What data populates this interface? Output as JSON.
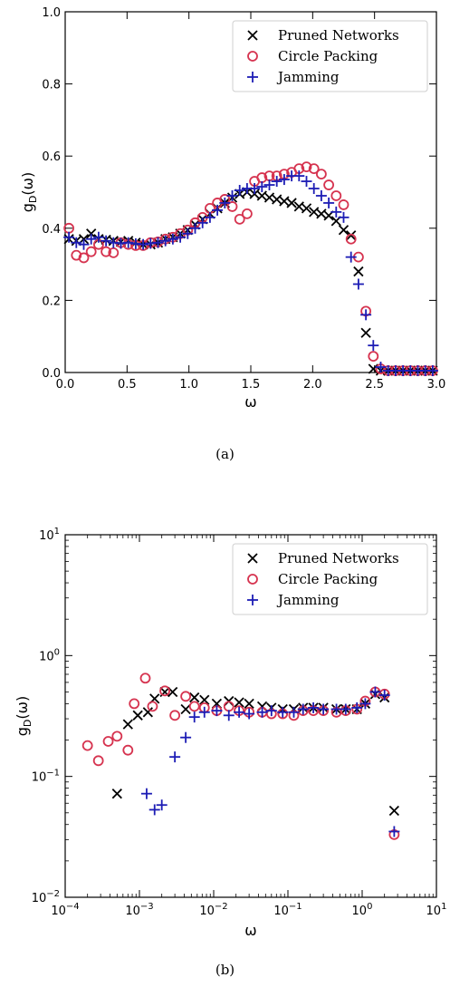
{
  "chart_data": [
    {
      "type": "scatter",
      "caption": "(a)",
      "xlabel": "ω",
      "ylabel": "gD(ω)",
      "xscale": "linear",
      "yscale": "linear",
      "xlim": [
        0.0,
        3.0
      ],
      "ylim": [
        0.0,
        1.0
      ],
      "xticks": [
        0.0,
        0.5,
        1.0,
        1.5,
        2.0,
        2.5,
        3.0
      ],
      "xtick_labels": [
        "0.0",
        "0.5",
        "1.0",
        "1.5",
        "2.0",
        "2.5",
        "3.0"
      ],
      "yticks": [
        0.0,
        0.2,
        0.4,
        0.6,
        0.8,
        1.0
      ],
      "ytick_labels": [
        "0.0",
        "0.2",
        "0.4",
        "0.6",
        "0.8",
        "1.0"
      ],
      "legend_position": "top-right",
      "grid": false,
      "series": [
        {
          "name": "Pruned Networks",
          "marker": "x",
          "color": "#000000",
          "points": [
            [
              0.03,
              0.37
            ],
            [
              0.09,
              0.365
            ],
            [
              0.15,
              0.37
            ],
            [
              0.21,
              0.385
            ],
            [
              0.27,
              0.37
            ],
            [
              0.33,
              0.368
            ],
            [
              0.39,
              0.365
            ],
            [
              0.45,
              0.362
            ],
            [
              0.51,
              0.365
            ],
            [
              0.57,
              0.36
            ],
            [
              0.63,
              0.355
            ],
            [
              0.69,
              0.355
            ],
            [
              0.75,
              0.36
            ],
            [
              0.81,
              0.37
            ],
            [
              0.87,
              0.375
            ],
            [
              0.93,
              0.385
            ],
            [
              0.99,
              0.395
            ],
            [
              1.05,
              0.41
            ],
            [
              1.11,
              0.425
            ],
            [
              1.17,
              0.44
            ],
            [
              1.23,
              0.455
            ],
            [
              1.29,
              0.47
            ],
            [
              1.35,
              0.485
            ],
            [
              1.41,
              0.495
            ],
            [
              1.47,
              0.5
            ],
            [
              1.53,
              0.495
            ],
            [
              1.59,
              0.49
            ],
            [
              1.65,
              0.485
            ],
            [
              1.71,
              0.48
            ],
            [
              1.77,
              0.475
            ],
            [
              1.83,
              0.47
            ],
            [
              1.89,
              0.46
            ],
            [
              1.95,
              0.455
            ],
            [
              2.01,
              0.445
            ],
            [
              2.07,
              0.44
            ],
            [
              2.13,
              0.435
            ],
            [
              2.19,
              0.42
            ],
            [
              2.25,
              0.395
            ],
            [
              2.31,
              0.38
            ],
            [
              2.37,
              0.28
            ],
            [
              2.43,
              0.11
            ],
            [
              2.49,
              0.01
            ],
            [
              2.55,
              0.005
            ],
            [
              2.61,
              0.005
            ],
            [
              2.67,
              0.005
            ],
            [
              2.73,
              0.005
            ],
            [
              2.79,
              0.005
            ],
            [
              2.85,
              0.005
            ],
            [
              2.91,
              0.005
            ],
            [
              2.97,
              0.005
            ]
          ]
        },
        {
          "name": "Circle Packing",
          "marker": "o",
          "color": "#d6334f",
          "points": [
            [
              0.03,
              0.4
            ],
            [
              0.09,
              0.325
            ],
            [
              0.15,
              0.318
            ],
            [
              0.21,
              0.335
            ],
            [
              0.27,
              0.355
            ],
            [
              0.33,
              0.335
            ],
            [
              0.39,
              0.332
            ],
            [
              0.45,
              0.36
            ],
            [
              0.51,
              0.355
            ],
            [
              0.57,
              0.352
            ],
            [
              0.63,
              0.352
            ],
            [
              0.69,
              0.36
            ],
            [
              0.75,
              0.362
            ],
            [
              0.81,
              0.37
            ],
            [
              0.87,
              0.375
            ],
            [
              0.93,
              0.385
            ],
            [
              0.99,
              0.395
            ],
            [
              1.05,
              0.415
            ],
            [
              1.11,
              0.43
            ],
            [
              1.17,
              0.455
            ],
            [
              1.23,
              0.47
            ],
            [
              1.29,
              0.48
            ],
            [
              1.35,
              0.46
            ],
            [
              1.41,
              0.425
            ],
            [
              1.47,
              0.44
            ],
            [
              1.53,
              0.53
            ],
            [
              1.59,
              0.54
            ],
            [
              1.65,
              0.545
            ],
            [
              1.71,
              0.545
            ],
            [
              1.77,
              0.55
            ],
            [
              1.83,
              0.555
            ],
            [
              1.89,
              0.565
            ],
            [
              1.95,
              0.57
            ],
            [
              2.01,
              0.565
            ],
            [
              2.07,
              0.55
            ],
            [
              2.13,
              0.52
            ],
            [
              2.19,
              0.49
            ],
            [
              2.25,
              0.465
            ],
            [
              2.31,
              0.37
            ],
            [
              2.37,
              0.32
            ],
            [
              2.43,
              0.17
            ],
            [
              2.49,
              0.045
            ],
            [
              2.55,
              0.01
            ],
            [
              2.61,
              0.005
            ],
            [
              2.67,
              0.005
            ],
            [
              2.73,
              0.005
            ],
            [
              2.79,
              0.005
            ],
            [
              2.85,
              0.005
            ],
            [
              2.91,
              0.005
            ],
            [
              2.97,
              0.005
            ]
          ]
        },
        {
          "name": "Jamming",
          "marker": "+",
          "color": "#1d1db5",
          "points": [
            [
              0.03,
              0.375
            ],
            [
              0.09,
              0.36
            ],
            [
              0.15,
              0.355
            ],
            [
              0.21,
              0.37
            ],
            [
              0.27,
              0.375
            ],
            [
              0.33,
              0.365
            ],
            [
              0.39,
              0.36
            ],
            [
              0.45,
              0.358
            ],
            [
              0.51,
              0.36
            ],
            [
              0.57,
              0.357
            ],
            [
              0.63,
              0.355
            ],
            [
              0.69,
              0.358
            ],
            [
              0.75,
              0.36
            ],
            [
              0.81,
              0.365
            ],
            [
              0.87,
              0.37
            ],
            [
              0.93,
              0.375
            ],
            [
              0.99,
              0.385
            ],
            [
              1.05,
              0.4
            ],
            [
              1.11,
              0.415
            ],
            [
              1.17,
              0.43
            ],
            [
              1.23,
              0.45
            ],
            [
              1.29,
              0.47
            ],
            [
              1.35,
              0.49
            ],
            [
              1.41,
              0.505
            ],
            [
              1.47,
              0.51
            ],
            [
              1.53,
              0.51
            ],
            [
              1.59,
              0.515
            ],
            [
              1.65,
              0.52
            ],
            [
              1.71,
              0.53
            ],
            [
              1.77,
              0.535
            ],
            [
              1.83,
              0.545
            ],
            [
              1.89,
              0.545
            ],
            [
              1.95,
              0.53
            ],
            [
              2.01,
              0.51
            ],
            [
              2.07,
              0.49
            ],
            [
              2.13,
              0.47
            ],
            [
              2.19,
              0.445
            ],
            [
              2.25,
              0.43
            ],
            [
              2.31,
              0.32
            ],
            [
              2.37,
              0.245
            ],
            [
              2.43,
              0.16
            ],
            [
              2.49,
              0.075
            ],
            [
              2.55,
              0.015
            ],
            [
              2.61,
              0.005
            ],
            [
              2.67,
              0.005
            ],
            [
              2.73,
              0.005
            ],
            [
              2.79,
              0.005
            ],
            [
              2.85,
              0.005
            ],
            [
              2.91,
              0.005
            ],
            [
              2.97,
              0.005
            ]
          ]
        }
      ]
    },
    {
      "type": "scatter",
      "caption": "(b)",
      "xlabel": "ω",
      "ylabel": "gD(ω)",
      "xscale": "log",
      "yscale": "log",
      "xlim": [
        0.0001,
        10
      ],
      "ylim": [
        0.01,
        10
      ],
      "xticks": [
        0.0001,
        0.001,
        0.01,
        0.1,
        1,
        10
      ],
      "xtick_labels": [
        [
          "10",
          "−4"
        ],
        [
          "10",
          "−3"
        ],
        [
          "10",
          "−2"
        ],
        [
          "10",
          "−1"
        ],
        [
          "10",
          "0"
        ],
        [
          "10",
          "1"
        ]
      ],
      "yticks": [
        0.01,
        0.1,
        1,
        10
      ],
      "ytick_labels": [
        [
          "10",
          "−2"
        ],
        [
          "10",
          "−1"
        ],
        [
          "10",
          "0"
        ],
        [
          "10",
          "1"
        ]
      ],
      "legend_position": "top-right",
      "grid": false,
      "series": [
        {
          "name": "Pruned Networks",
          "marker": "x",
          "color": "#000000",
          "points": [
            [
              0.0005,
              0.072
            ],
            [
              0.0007,
              0.27
            ],
            [
              0.00095,
              0.32
            ],
            [
              0.0013,
              0.34
            ],
            [
              0.0016,
              0.44
            ],
            [
              0.0022,
              0.5
            ],
            [
              0.0028,
              0.5
            ],
            [
              0.0042,
              0.36
            ],
            [
              0.0055,
              0.45
            ],
            [
              0.0075,
              0.43
            ],
            [
              0.011,
              0.4
            ],
            [
              0.016,
              0.42
            ],
            [
              0.022,
              0.41
            ],
            [
              0.03,
              0.4
            ],
            [
              0.045,
              0.38
            ],
            [
              0.06,
              0.37
            ],
            [
              0.085,
              0.36
            ],
            [
              0.12,
              0.36
            ],
            [
              0.16,
              0.37
            ],
            [
              0.22,
              0.37
            ],
            [
              0.3,
              0.37
            ],
            [
              0.45,
              0.36
            ],
            [
              0.6,
              0.36
            ],
            [
              0.85,
              0.36
            ],
            [
              1.1,
              0.4
            ],
            [
              1.5,
              0.48
            ],
            [
              2.0,
              0.45
            ],
            [
              2.7,
              0.052
            ]
          ]
        },
        {
          "name": "Circle Packing",
          "marker": "o",
          "color": "#d6334f",
          "points": [
            [
              0.0002,
              0.18
            ],
            [
              0.00028,
              0.135
            ],
            [
              0.00038,
              0.195
            ],
            [
              0.0005,
              0.215
            ],
            [
              0.0007,
              0.165
            ],
            [
              0.00085,
              0.4
            ],
            [
              0.0012,
              0.65
            ],
            [
              0.0015,
              0.38
            ],
            [
              0.0022,
              0.51
            ],
            [
              0.003,
              0.32
            ],
            [
              0.0042,
              0.46
            ],
            [
              0.0055,
              0.38
            ],
            [
              0.0075,
              0.37
            ],
            [
              0.011,
              0.35
            ],
            [
              0.016,
              0.38
            ],
            [
              0.022,
              0.35
            ],
            [
              0.03,
              0.34
            ],
            [
              0.045,
              0.34
            ],
            [
              0.06,
              0.33
            ],
            [
              0.085,
              0.33
            ],
            [
              0.12,
              0.32
            ],
            [
              0.16,
              0.35
            ],
            [
              0.22,
              0.35
            ],
            [
              0.3,
              0.35
            ],
            [
              0.45,
              0.34
            ],
            [
              0.6,
              0.35
            ],
            [
              0.85,
              0.36
            ],
            [
              1.1,
              0.42
            ],
            [
              1.5,
              0.5
            ],
            [
              2.0,
              0.48
            ],
            [
              2.7,
              0.033
            ]
          ]
        },
        {
          "name": "Jamming",
          "marker": "+",
          "color": "#1d1db5",
          "points": [
            [
              0.00125,
              0.072
            ],
            [
              0.0016,
              0.053
            ],
            [
              0.002,
              0.058
            ],
            [
              0.003,
              0.145
            ],
            [
              0.0042,
              0.21
            ],
            [
              0.0055,
              0.31
            ],
            [
              0.0075,
              0.34
            ],
            [
              0.011,
              0.35
            ],
            [
              0.016,
              0.32
            ],
            [
              0.022,
              0.34
            ],
            [
              0.03,
              0.33
            ],
            [
              0.045,
              0.34
            ],
            [
              0.06,
              0.35
            ],
            [
              0.085,
              0.34
            ],
            [
              0.12,
              0.34
            ],
            [
              0.16,
              0.36
            ],
            [
              0.22,
              0.37
            ],
            [
              0.3,
              0.36
            ],
            [
              0.45,
              0.36
            ],
            [
              0.6,
              0.36
            ],
            [
              0.85,
              0.37
            ],
            [
              1.1,
              0.4
            ],
            [
              1.5,
              0.5
            ],
            [
              2.0,
              0.47
            ],
            [
              2.7,
              0.035
            ]
          ]
        }
      ]
    }
  ]
}
